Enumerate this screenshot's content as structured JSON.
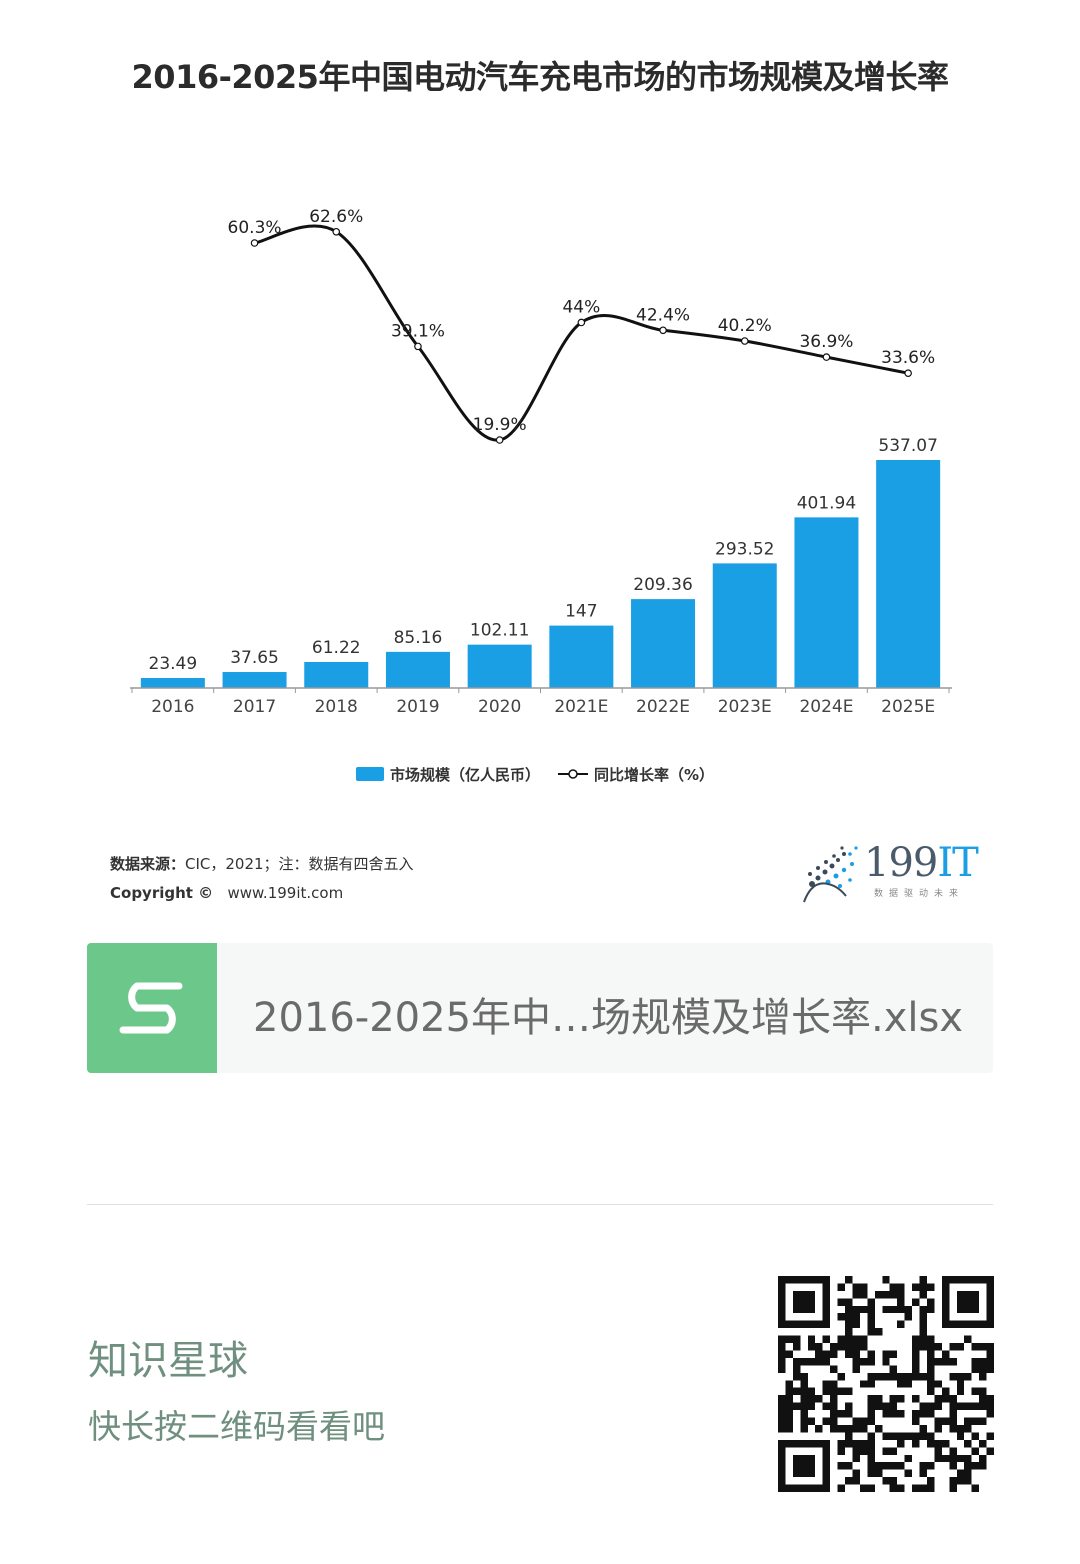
{
  "chart_data": {
    "type": "bar",
    "title": "2016-2025年中国电动汽车充电市场的市场规模及增长率",
    "categories": [
      "2016",
      "2017",
      "2018",
      "2019",
      "2020",
      "2021E",
      "2022E",
      "2023E",
      "2024E",
      "2025E"
    ],
    "series": [
      {
        "name": "市场规模（亿人民币）",
        "type": "bar",
        "values": [
          23.49,
          37.65,
          61.22,
          85.16,
          102.11,
          147,
          209.36,
          293.52,
          401.94,
          537.07
        ],
        "labels": [
          "23.49",
          "37.65",
          "61.22",
          "85.16",
          "102.11",
          "147",
          "209.36",
          "293.52",
          "401.94",
          "537.07"
        ]
      },
      {
        "name": "同比增长率（%）",
        "type": "line",
        "values": [
          null,
          60.3,
          62.6,
          39.1,
          19.9,
          44,
          42.4,
          40.2,
          36.9,
          33.6
        ],
        "labels": [
          "",
          "60.3%",
          "62.6%",
          "39.1%",
          "19.9%",
          "44%",
          "42.4%",
          "40.2%",
          "36.9%",
          "33.6%"
        ]
      }
    ],
    "colors": {
      "bar": "#1a9ee4",
      "line": "#111111"
    },
    "legend": "bottom",
    "grid": false
  },
  "footer": {
    "source_label": "数据来源：",
    "source_text": "CIC，2021；注：数据有四舍五入",
    "copyright_label": "Copyright ©",
    "copyright_site": "www.199it.com"
  },
  "logo": {
    "main": "199",
    "accent": "IT",
    "sub": "数据驱动未来"
  },
  "file": {
    "name": "2016-2025年中…场规模及增长率.xlsx",
    "icon": "spreadsheet-s-icon",
    "icon_color": "#6cc88a"
  },
  "promo": {
    "title": "知识星球",
    "subtitle": "快长按二维码看看吧"
  }
}
